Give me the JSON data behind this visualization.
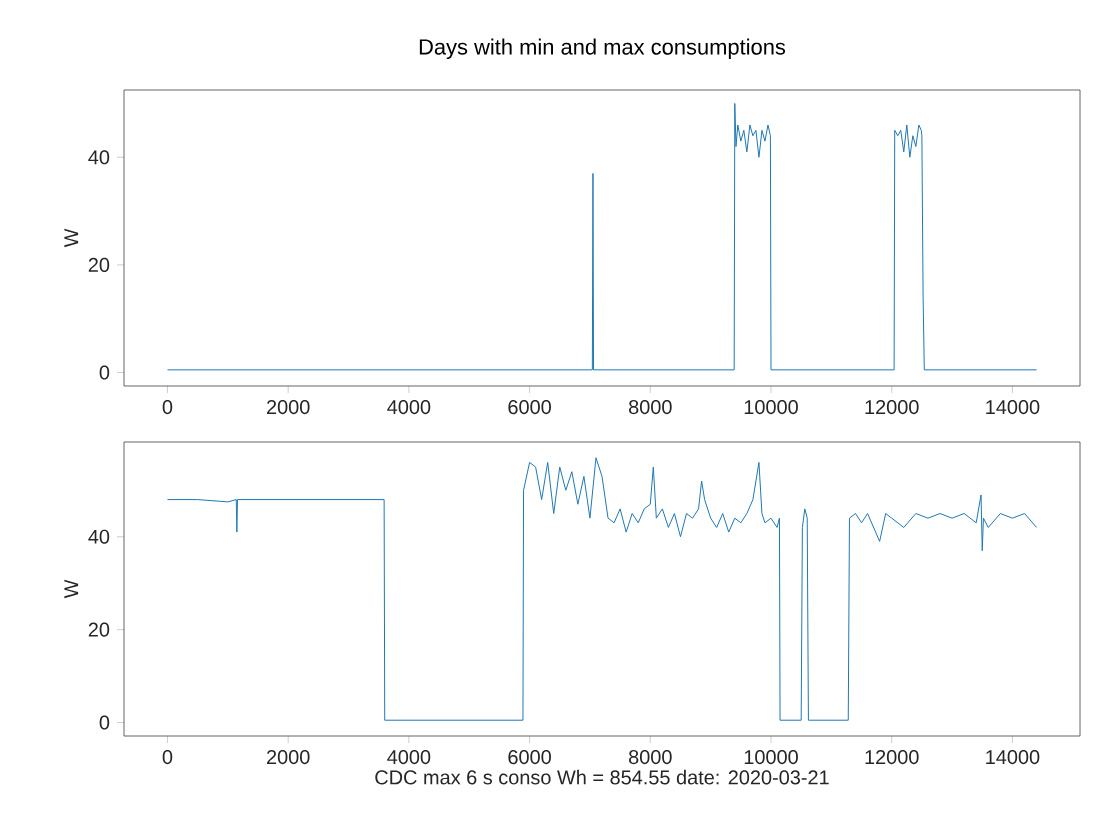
{
  "chart_data": [
    {
      "type": "line",
      "title": "Days with min and max consumptions",
      "ylabel": "W",
      "color": "#1f77b4",
      "x": [
        0,
        1000,
        2000,
        3000,
        4000,
        5000,
        6000,
        7000,
        7040,
        7050,
        7060,
        8000,
        9000,
        9390,
        9400,
        9420,
        9450,
        9500,
        9550,
        9600,
        9650,
        9700,
        9750,
        9800,
        9850,
        9900,
        9950,
        9990,
        10000,
        10010,
        11000,
        12000,
        12040,
        12050,
        12100,
        12150,
        12200,
        12250,
        12300,
        12350,
        12400,
        12450,
        12490,
        12500,
        12520,
        12540,
        13000,
        14000,
        14400
      ],
      "values": [
        0.5,
        0.5,
        0.5,
        0.5,
        0.5,
        0.5,
        0.5,
        0.5,
        0.5,
        37,
        0.5,
        0.5,
        0.5,
        0.5,
        50,
        42,
        46,
        43,
        45,
        41,
        46,
        44,
        45,
        40,
        45,
        43,
        46,
        44,
        0.5,
        0.5,
        0.5,
        0.5,
        0.5,
        45,
        44,
        45,
        41,
        46,
        40,
        44,
        42,
        46,
        45,
        44,
        14,
        0.5,
        0.5,
        0.5,
        0.5
      ],
      "xlim": [
        -720,
        15120
      ],
      "ylim": [
        -2.5,
        52.5
      ],
      "xticks": [
        0,
        2000,
        4000,
        6000,
        8000,
        10000,
        12000,
        14000
      ],
      "yticks": [
        0,
        20,
        40
      ],
      "marker": "none",
      "line_style": "solid"
    },
    {
      "type": "line",
      "xlabel": "CDC max 6 s conso Wh = 854.55 date: 2020-03-21",
      "ylabel": "W",
      "color": "#1f77b4",
      "x": [
        0,
        500,
        1000,
        1140,
        1150,
        1160,
        2000,
        3000,
        3590,
        3600,
        4000,
        5000,
        5890,
        5900,
        6000,
        6100,
        6200,
        6300,
        6400,
        6500,
        6600,
        6700,
        6800,
        6900,
        7000,
        7100,
        7200,
        7300,
        7400,
        7500,
        7600,
        7700,
        7800,
        7900,
        8000,
        8050,
        8100,
        8200,
        8300,
        8400,
        8500,
        8600,
        8700,
        8800,
        8850,
        8900,
        9000,
        9100,
        9200,
        9300,
        9400,
        9500,
        9600,
        9700,
        9800,
        9850,
        9900,
        10000,
        10100,
        10140,
        10150,
        10300,
        10500,
        10520,
        10560,
        10600,
        10620,
        10700,
        11000,
        11280,
        11300,
        11400,
        11500,
        11600,
        11800,
        11900,
        12000,
        12200,
        12400,
        12600,
        12800,
        13000,
        13200,
        13400,
        13480,
        13500,
        13520,
        13600,
        13800,
        14000,
        14200,
        14400
      ],
      "values": [
        48,
        48,
        47.5,
        48,
        41,
        48,
        48,
        48,
        48,
        0.5,
        0.5,
        0.5,
        0.5,
        50,
        56,
        55,
        48,
        56,
        45,
        55,
        50,
        54,
        47,
        53,
        44,
        57,
        53,
        44,
        43,
        46,
        41,
        45,
        43,
        46,
        47,
        55,
        44,
        46,
        42,
        45,
        40,
        45,
        44,
        46,
        52,
        48,
        44,
        42,
        45,
        41,
        44,
        43,
        45,
        48,
        56,
        45,
        43,
        44,
        42,
        44,
        0.5,
        0.5,
        0.5,
        42,
        46,
        44,
        0.5,
        0.5,
        0.5,
        0.5,
        44,
        45,
        43,
        45,
        39,
        45,
        44,
        42,
        45,
        44,
        45,
        44,
        45,
        43,
        49,
        37,
        44,
        42,
        45,
        44,
        45,
        42
      ],
      "xlim": [
        -720,
        15120
      ],
      "ylim": [
        -2.9,
        60.4
      ],
      "xticks": [
        0,
        2000,
        4000,
        6000,
        8000,
        10000,
        12000,
        14000
      ],
      "yticks": [
        0,
        20,
        40
      ],
      "marker": "none",
      "line_style": "solid"
    }
  ]
}
